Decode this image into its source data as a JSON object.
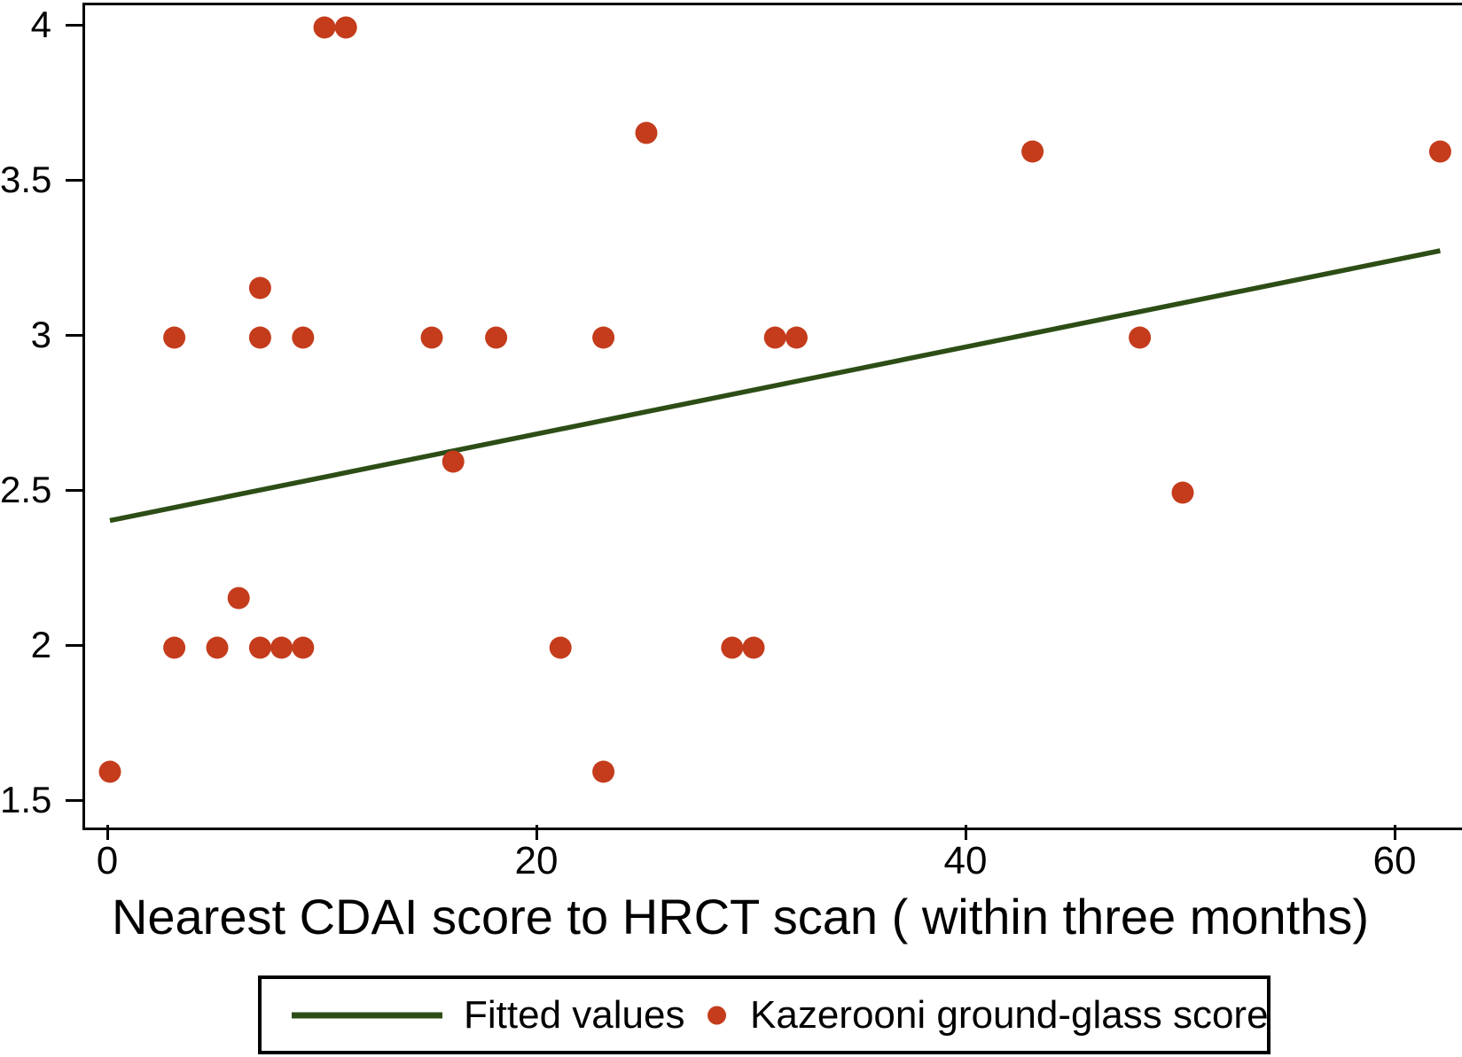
{
  "figure": {
    "background": "#ffffff",
    "frame_color": "#000000"
  },
  "chart_data": {
    "type": "scatter",
    "title": "",
    "xlabel": "Nearest CDAI score to HRCT scan ( within three months)",
    "ylabel": "",
    "xlim": [
      -1.2,
      63.1
    ],
    "ylim": [
      1.42,
      4.07
    ],
    "grid": false,
    "x_ticks": [
      "0",
      "20",
      "40",
      "60"
    ],
    "x_tick_values": [
      0,
      20,
      40,
      60
    ],
    "y_ticks": [
      "1.5",
      "2",
      "2.5",
      "3",
      "3.5",
      "4"
    ],
    "y_tick_values": [
      1.5,
      2,
      2.5,
      3,
      3.5,
      4
    ],
    "series": [
      {
        "name": "Kazerooni ground-glass score",
        "kind": "scatter",
        "color": "#c43c1c",
        "marker": "filled-circle",
        "points": [
          [
            0,
            1.6
          ],
          [
            3,
            2
          ],
          [
            3,
            3
          ],
          [
            5,
            2
          ],
          [
            6,
            2.16
          ],
          [
            7,
            2
          ],
          [
            7,
            3
          ],
          [
            7,
            3.16
          ],
          [
            8,
            2
          ],
          [
            9,
            2
          ],
          [
            9,
            3
          ],
          [
            10,
            4
          ],
          [
            11,
            4
          ],
          [
            15,
            3
          ],
          [
            16,
            2.6
          ],
          [
            18,
            3
          ],
          [
            21,
            2
          ],
          [
            23,
            1.6
          ],
          [
            23,
            3
          ],
          [
            25,
            3.66
          ],
          [
            29,
            2
          ],
          [
            30,
            2
          ],
          [
            31,
            3
          ],
          [
            32,
            3
          ],
          [
            43,
            3.6
          ],
          [
            48,
            3
          ],
          [
            50,
            2.5
          ],
          [
            62,
            3.6
          ]
        ]
      },
      {
        "name": "Fitted values",
        "kind": "line",
        "color": "#2d4d16",
        "endpoints": [
          [
            0,
            2.41
          ],
          [
            62,
            3.28
          ]
        ]
      }
    ],
    "legend": {
      "position": "bottom",
      "entries": [
        {
          "label": "Fitted values",
          "marker": "line",
          "color": "#2d4d16"
        },
        {
          "label": "Kazerooni ground-glass score",
          "marker": "dot",
          "color": "#c43c1c"
        }
      ]
    }
  }
}
